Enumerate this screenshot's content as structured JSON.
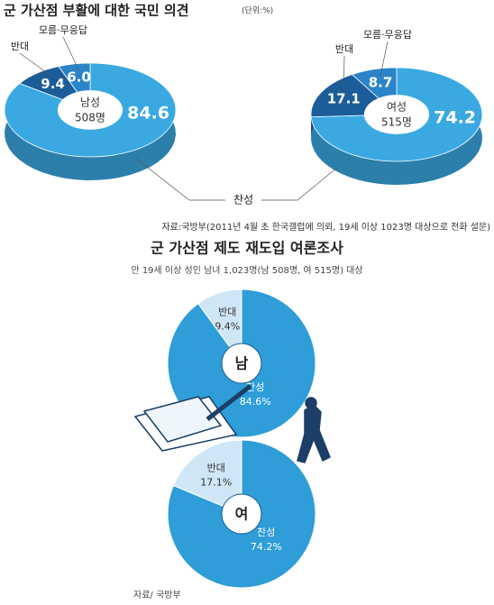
{
  "chart_data": [
    {
      "type": "donut3d",
      "title": "군 가산점 부활에 대한 국민 의견",
      "unit": "(단위:%)",
      "categories": [
        "찬성",
        "반대",
        "모름·무응답"
      ],
      "colors": [
        "#3aa9e2",
        "#1b5d98",
        "#2b84c8"
      ],
      "series": [
        {
          "name": "남성",
          "count_label": "508명",
          "values": [
            84.6,
            9.4,
            6.0
          ],
          "value_labels": [
            "84.6",
            "9.4",
            "6.0"
          ]
        },
        {
          "name": "여성",
          "count_label": "515명",
          "values": [
            74.2,
            17.1,
            8.7
          ],
          "value_labels": [
            "74.2",
            "17.1",
            "8.7"
          ]
        }
      ],
      "source": "자료:국방부(2011년 4월 초 한국갤럽에 의뢰, 19세 이상 1023명 대상으로 전화 설문)"
    },
    {
      "type": "pie",
      "title": "군 가산점 제도 재도입 여론조사",
      "subtitle": "만 19세 이상 성인 남녀 1,023명(남 508명, 여 515명) 대상",
      "categories": [
        "반대",
        "찬성"
      ],
      "colors": [
        "#cfe6f6",
        "#2e9dd8"
      ],
      "series": [
        {
          "name": "남",
          "values": [
            9.4,
            84.6
          ],
          "value_labels": [
            "9.4%",
            "84.6%"
          ]
        },
        {
          "name": "여",
          "values": [
            17.1,
            74.2
          ],
          "value_labels": [
            "17.1%",
            "74.2%"
          ]
        }
      ],
      "source": "자료/ 국방부"
    }
  ]
}
